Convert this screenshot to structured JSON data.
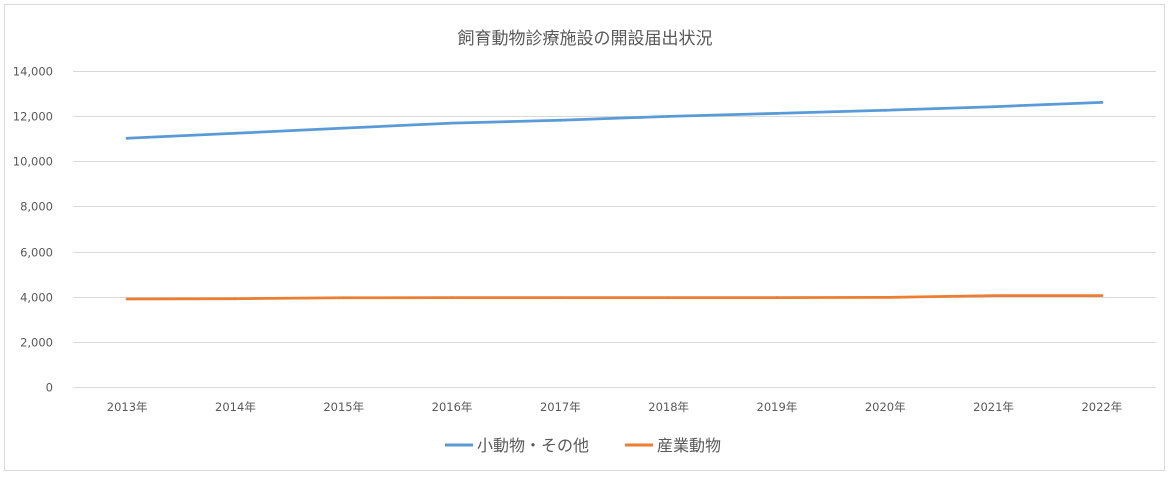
{
  "chart_data": {
    "type": "line",
    "title": "飼育動物診療施設の開設届出状況",
    "xlabel": "",
    "ylabel": "",
    "categories": [
      "2013年",
      "2014年",
      "2015年",
      "2016年",
      "2017年",
      "2018年",
      "2019年",
      "2020年",
      "2021年",
      "2022年"
    ],
    "series": [
      {
        "name": "小動物・その他",
        "color": "#5b9bd5",
        "values": [
          11020,
          11240,
          11470,
          11690,
          11820,
          11990,
          12120,
          12260,
          12420,
          12610
        ]
      },
      {
        "name": "産業動物",
        "color": "#ed7d31",
        "values": [
          3900,
          3910,
          3950,
          3960,
          3960,
          3960,
          3960,
          3970,
          4050,
          4050
        ]
      }
    ],
    "ylim": [
      0,
      14000
    ],
    "y_ticks": [
      0,
      2000,
      4000,
      6000,
      8000,
      10000,
      12000,
      14000
    ],
    "y_tick_labels": [
      "0",
      "2,000",
      "4,000",
      "6,000",
      "8,000",
      "10,000",
      "12,000",
      "14,000"
    ],
    "grid": "horizontal",
    "legend_position": "bottom",
    "legend_separator": "・"
  }
}
